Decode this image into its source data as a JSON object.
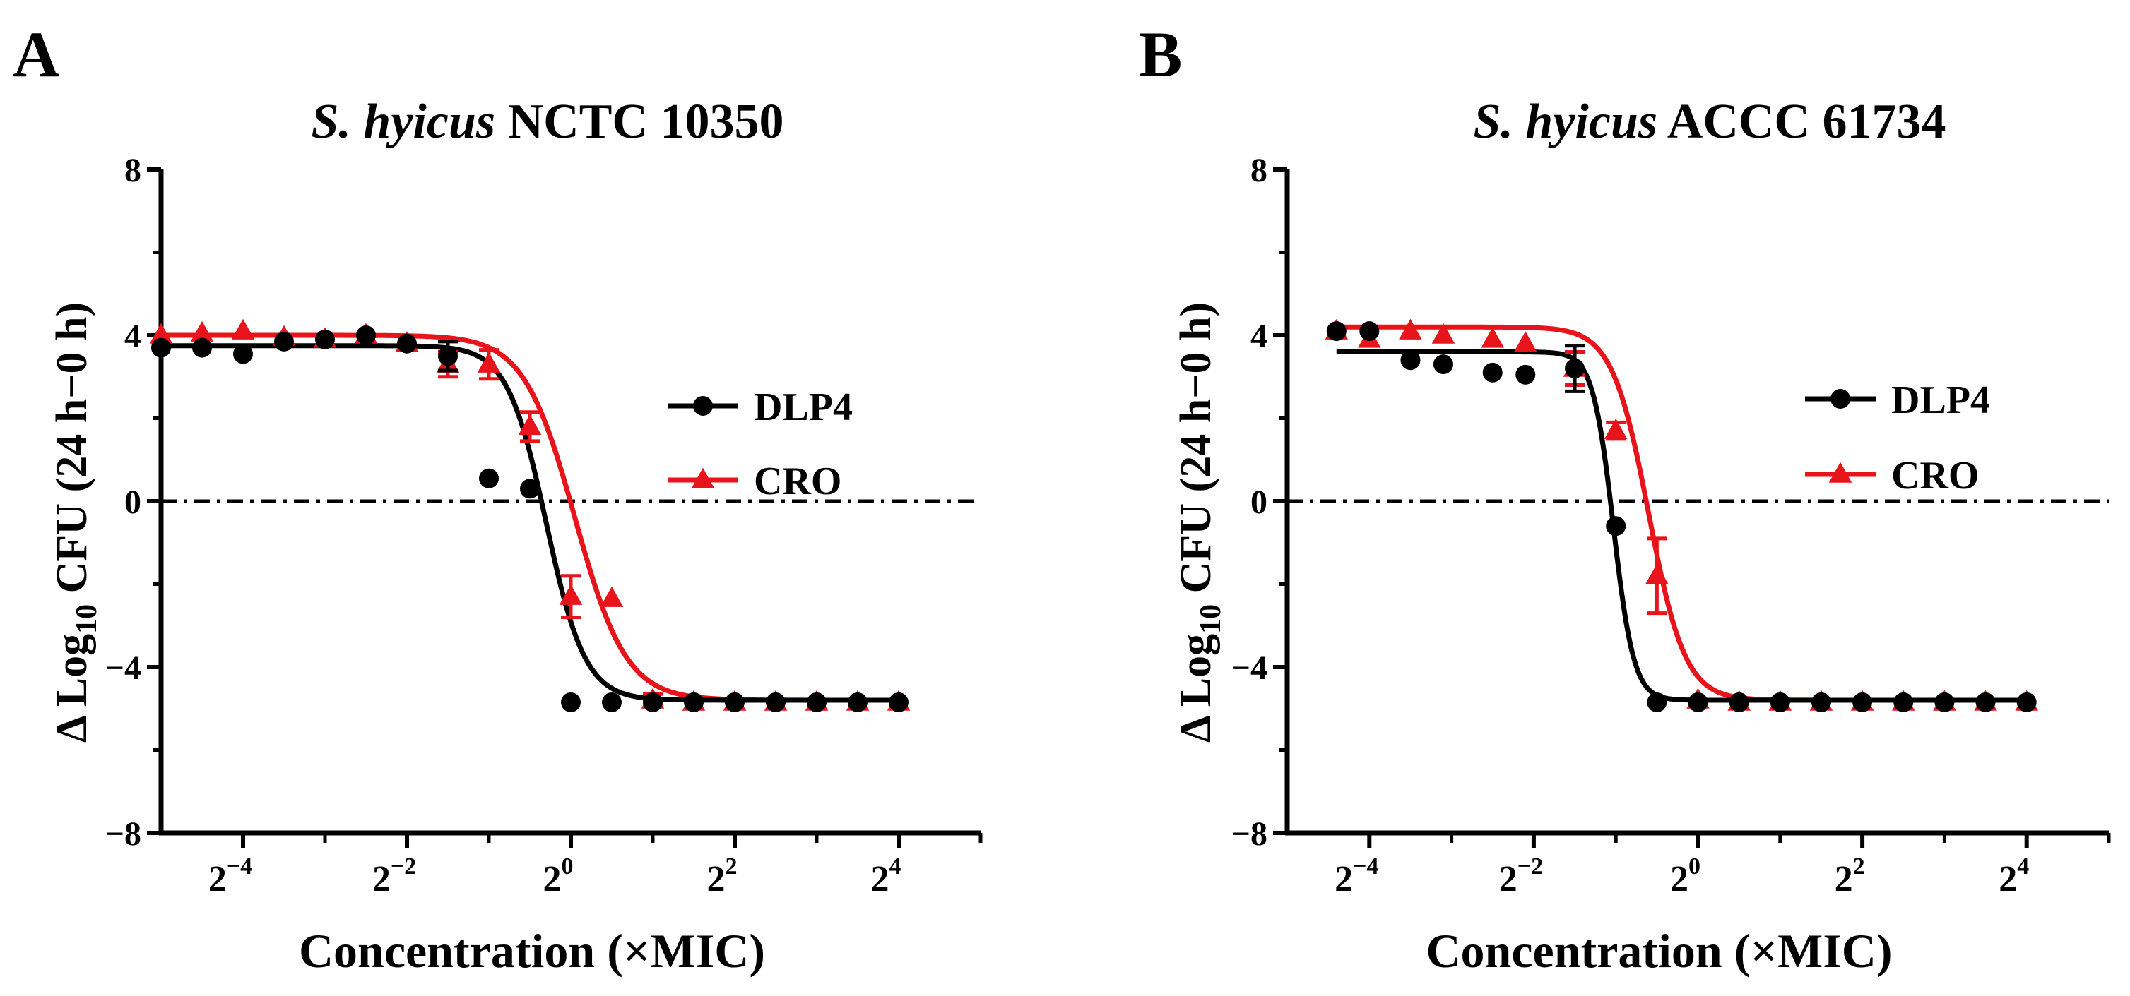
{
  "chart_data": [
    {
      "type": "scatter",
      "panel_label": "A",
      "title_italic": "S. hyicus",
      "title_rest": " NCTC 10350",
      "ylabel_main": "Δ Log",
      "ylabel_sub": "10",
      "ylabel_rest": " CFU (24 h−0 h)",
      "xlabel": "Concentration (×MIC)",
      "x_scale": "log2",
      "xlim_log2": [
        -5,
        5
      ],
      "ylim": [
        -8,
        8
      ],
      "x_tick_base": "2",
      "x_tick_exponents": [
        "−4",
        "−2",
        "0",
        "2",
        "4"
      ],
      "x_tick_exponent_values": [
        -4,
        -2,
        0,
        2,
        4
      ],
      "y_ticks": [
        "8",
        "4",
        "0",
        "−4",
        "−8"
      ],
      "y_tick_values": [
        8,
        4,
        0,
        -4,
        -8
      ],
      "reference_line_y": 0,
      "legend": [
        {
          "label": "DLP4",
          "marker": "circle",
          "color": "#000000"
        },
        {
          "label": "CRO",
          "marker": "triangle",
          "color": "#e8141b"
        }
      ],
      "series": [
        {
          "name": "DLP4",
          "color": "#000000",
          "marker": "circle",
          "x_log2": [
            -5,
            -4.5,
            -4,
            -3.5,
            -3,
            -2.5,
            -2,
            -1.5,
            -1,
            -0.5,
            0,
            0.5,
            1,
            1.5,
            2,
            2.5,
            3,
            3.5,
            4
          ],
          "y": [
            3.7,
            3.7,
            3.55,
            3.85,
            3.9,
            4.0,
            3.8,
            3.5,
            0.55,
            0.3,
            -4.85,
            -4.85,
            -4.85,
            -4.85,
            -4.85,
            -4.85,
            -4.85,
            -4.85,
            -4.85
          ],
          "err": [
            0,
            0,
            0,
            0,
            0,
            0,
            0,
            0.35,
            0,
            0,
            0,
            0,
            0,
            0,
            0,
            0,
            0,
            0,
            0
          ],
          "fit": {
            "top": 3.75,
            "bottom": -4.8,
            "x50_log2": -0.3,
            "slope": 4.2
          }
        },
        {
          "name": "CRO",
          "color": "#e8141b",
          "marker": "triangle",
          "x_log2": [
            -5,
            -4.5,
            -4,
            -3.5,
            -3,
            -2.5,
            -2,
            -1.5,
            -1,
            -0.5,
            0,
            0.5,
            1,
            1.5,
            2,
            2.5,
            3,
            3.5,
            4
          ],
          "y": [
            4.0,
            4.05,
            4.1,
            3.95,
            3.9,
            4.0,
            3.8,
            3.3,
            3.3,
            1.8,
            -2.3,
            -2.35,
            -4.8,
            -4.85,
            -4.85,
            -4.85,
            -4.85,
            -4.85,
            -4.85
          ],
          "err": [
            0,
            0,
            0,
            0,
            0,
            0,
            0,
            0.3,
            0.35,
            0.35,
            0.5,
            0,
            0.15,
            0,
            0,
            0,
            0,
            0,
            0
          ],
          "fit": {
            "top": 4.0,
            "bottom": -4.8,
            "x50_log2": 0.05,
            "slope": 3.2
          }
        }
      ]
    },
    {
      "type": "scatter",
      "panel_label": "B",
      "title_italic": "S. hyicus",
      "title_rest": " ACCC 61734",
      "ylabel_main": "Δ Log",
      "ylabel_sub": "10",
      "ylabel_rest": " CFU (24 h−0 h)",
      "xlabel": "Concentration (×MIC)",
      "x_scale": "log2",
      "xlim_log2": [
        -5,
        5
      ],
      "ylim": [
        -8,
        8
      ],
      "x_tick_base": "2",
      "x_tick_exponents": [
        "−4",
        "−2",
        "0",
        "2",
        "4"
      ],
      "x_tick_exponent_values": [
        -4,
        -2,
        0,
        2,
        4
      ],
      "y_ticks": [
        "8",
        "4",
        "0",
        "−4",
        "−8"
      ],
      "y_tick_values": [
        8,
        4,
        0,
        -4,
        -8
      ],
      "reference_line_y": 0,
      "legend": [
        {
          "label": "DLP4",
          "marker": "circle",
          "color": "#000000"
        },
        {
          "label": "CRO",
          "marker": "triangle",
          "color": "#e8141b"
        }
      ],
      "series": [
        {
          "name": "DLP4",
          "color": "#000000",
          "marker": "circle",
          "x_log2": [
            -4.4,
            -4.0,
            -3.5,
            -3.1,
            -2.5,
            -2.1,
            -1.5,
            -1.0,
            -0.5,
            0.0,
            0.5,
            1.0,
            1.5,
            2.0,
            2.5,
            3.0,
            3.5,
            4.0
          ],
          "y": [
            4.1,
            4.1,
            3.4,
            3.3,
            3.1,
            3.05,
            3.2,
            -0.6,
            -4.85,
            -4.85,
            -4.85,
            -4.85,
            -4.85,
            -4.85,
            -4.85,
            -4.85,
            -4.85,
            -4.85
          ],
          "err": [
            0,
            0,
            0,
            0,
            0,
            0,
            0.55,
            0,
            0,
            0,
            0,
            0,
            0,
            0,
            0,
            0,
            0,
            0
          ],
          "fit": {
            "top": 3.6,
            "bottom": -4.8,
            "x50_log2": -1.03,
            "slope": 8.0
          }
        },
        {
          "name": "CRO",
          "color": "#e8141b",
          "marker": "triangle",
          "x_log2": [
            -4.4,
            -4.0,
            -3.5,
            -3.1,
            -2.5,
            -2.1,
            -1.5,
            -1.0,
            -0.5,
            0.0,
            0.5,
            1.0,
            1.5,
            2.0,
            2.5,
            3.0,
            3.5,
            4.0
          ],
          "y": [
            4.1,
            3.9,
            4.1,
            4.0,
            3.9,
            3.8,
            3.2,
            1.7,
            -1.8,
            -4.8,
            -4.85,
            -4.85,
            -4.85,
            -4.85,
            -4.85,
            -4.85,
            -4.85,
            -4.85
          ],
          "err": [
            0,
            0,
            0,
            0,
            0,
            0,
            0.4,
            0.2,
            0.9,
            0,
            0,
            0,
            0,
            0,
            0,
            0,
            0,
            0
          ],
          "fit": {
            "top": 4.2,
            "bottom": -4.8,
            "x50_log2": -0.6,
            "slope": 4.5
          }
        }
      ]
    }
  ]
}
